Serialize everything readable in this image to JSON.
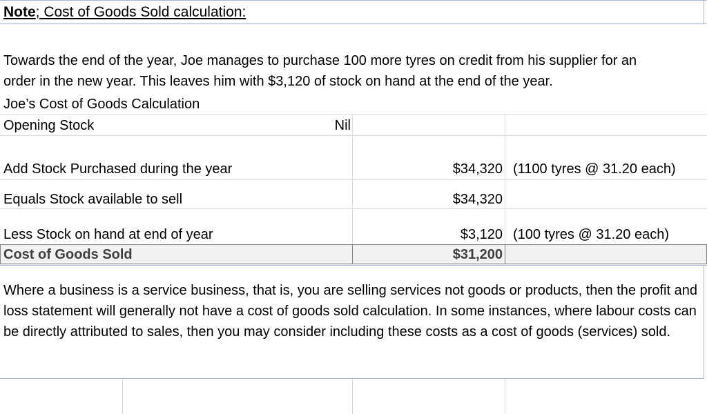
{
  "note": {
    "label": "Note",
    "rest": "; Cost of Goods Sold calculation:"
  },
  "intro": {
    "line1": "Towards the end of the year, Joe manages to purchase 100 more tyres on credit from his supplier for an",
    "line2": "order in the new year.  This leaves him with $3,120 of stock on hand at the end of the year."
  },
  "table": {
    "heading": "Joe’s Cost of Goods Calculation",
    "opening_label": "Opening Stock",
    "opening_value": "Nil",
    "purchased_label": "Add Stock Purchased during the year",
    "purchased_value": "$34,320",
    "purchased_note": "(1100 tyres @ 31.20 each)",
    "available_label": "Equals Stock available to sell",
    "available_value": "$34,320",
    "closing_label": "Less Stock on hand at end of year",
    "closing_value": "$3,120",
    "closing_note": "(100 tyres @ 31.20 each)",
    "cogs_label": "Cost of Goods Sold",
    "cogs_value": "$31,200"
  },
  "closing_paragraph": "Where a business is a service business, that is, you are selling services not goods or products, then the profit and loss statement will generally not have a cost of goods sold calculation.  In some instances, where labour costs can be directly attributed to sales, then you may consider including these costs as a cost of goods (services) sold."
}
